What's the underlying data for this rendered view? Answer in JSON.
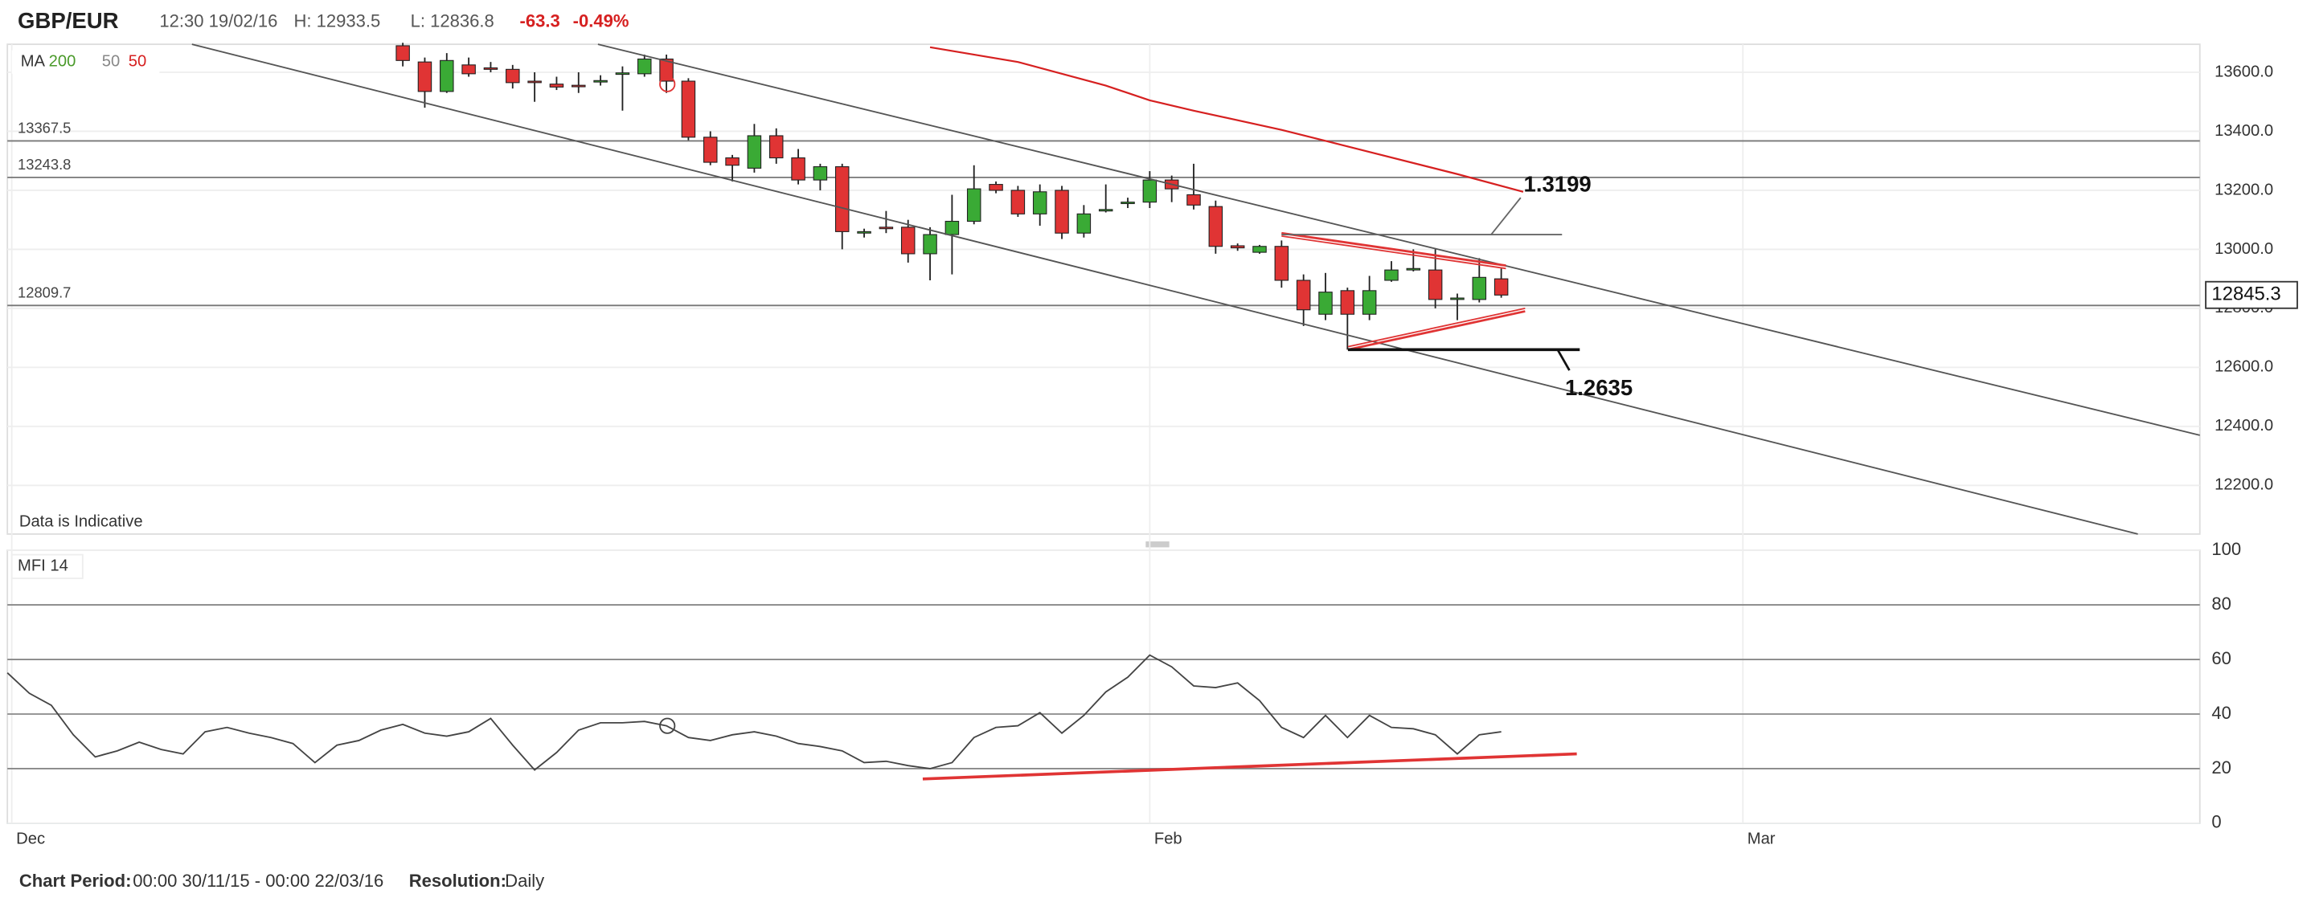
{
  "header": {
    "pair": "GBP/EUR",
    "time": "12:30 19/02/16",
    "high": "H: 12933.5",
    "low": "L: 12836.8",
    "change": "-63.3",
    "change_pct": "-0.49%"
  },
  "chart_data": [
    {
      "type": "candlestick",
      "x": [
        0,
        1,
        2,
        3,
        4,
        5,
        6,
        7,
        8,
        9,
        10,
        11,
        12,
        13,
        14,
        15,
        16,
        17,
        18,
        19,
        20,
        21,
        22,
        23,
        24,
        25,
        26,
        27,
        28,
        29,
        30,
        31,
        32,
        33,
        34,
        35,
        36,
        37,
        38,
        39,
        40,
        41,
        42,
        43,
        44,
        45,
        46,
        47,
        48,
        49,
        50
      ],
      "open": [
        13690,
        13635,
        13535,
        13625,
        13615,
        13610,
        13570,
        13560,
        13556,
        13570,
        13595,
        13595,
        13645,
        13570,
        13380,
        13310,
        13275,
        13385,
        13310,
        13235,
        13280,
        13058,
        13075,
        13075,
        12985,
        13050,
        13095,
        13220,
        13200,
        13120,
        13200,
        13055,
        13130,
        13155,
        13160,
        13235,
        13185,
        13145,
        13012,
        12990,
        13010,
        12895,
        12780,
        12860,
        12780,
        12895,
        12930,
        12930,
        12830,
        12830,
        12900
      ],
      "high": [
        13700,
        13650,
        13665,
        13650,
        13635,
        13625,
        13600,
        13585,
        13600,
        13590,
        13620,
        13660,
        13660,
        13580,
        13400,
        13320,
        13425,
        13410,
        13340,
        13290,
        13290,
        13070,
        13130,
        13100,
        13075,
        13185,
        13285,
        13230,
        13215,
        13220,
        13215,
        13150,
        13220,
        13175,
        13265,
        13250,
        13290,
        13165,
        13020,
        13015,
        13030,
        12915,
        12920,
        12870,
        12910,
        12960,
        13000,
        13000,
        12850,
        12970,
        12935
      ],
      "low": [
        13620,
        13480,
        13530,
        13585,
        13600,
        13545,
        13500,
        13540,
        13530,
        13555,
        13470,
        13585,
        13530,
        13370,
        13285,
        13230,
        13260,
        13290,
        13220,
        13200,
        13000,
        13040,
        13055,
        12955,
        12895,
        12915,
        13085,
        13190,
        13110,
        13080,
        13035,
        13040,
        13125,
        13140,
        13140,
        13160,
        13135,
        12985,
        12995,
        12985,
        12870,
        12740,
        12760,
        12660,
        12760,
        12890,
        12925,
        12800,
        12760,
        12820,
        12836
      ],
      "close": [
        13640,
        13535,
        13640,
        13595,
        13612,
        13565,
        13568,
        13550,
        13555,
        13572,
        13598,
        13645,
        13570,
        13380,
        13295,
        13285,
        13385,
        13310,
        13235,
        13280,
        13060,
        13060,
        13072,
        12985,
        13050,
        13095,
        13205,
        13200,
        13120,
        13195,
        13055,
        13120,
        13135,
        13160,
        13235,
        13205,
        13150,
        13010,
        13005,
        13010,
        12895,
        12795,
        12855,
        12780,
        12860,
        12930,
        12935,
        12830,
        12835,
        12905,
        12845
      ],
      "up_color": "#3aaa35",
      "down_color": "#e03434",
      "xlim": [
        -18,
        81.8
      ],
      "xticks": [
        {
          "value": -17.8,
          "label": "Dec"
        },
        {
          "value": 34,
          "label": "Feb"
        },
        {
          "value": 61,
          "label": "Mar"
        }
      ],
      "ylim": [
        12035,
        13695
      ],
      "yticks": [
        {
          "value": 12200,
          "label": "12200.0"
        },
        {
          "value": 12400,
          "label": "12400.0"
        },
        {
          "value": 12600,
          "label": "12600.0"
        },
        {
          "value": 12800,
          "label": "12800.0"
        },
        {
          "value": 13000,
          "label": "13000.0"
        },
        {
          "value": 13200,
          "label": "13200.0"
        },
        {
          "value": 13400,
          "label": "13400.0"
        },
        {
          "value": 13600,
          "label": "13600.0"
        }
      ],
      "grid": true,
      "levels": [
        13367.5,
        13243.8,
        12809.7
      ],
      "last_price": 12845.3,
      "ma_label": "MA",
      "ma_legend": [
        {
          "name": "200",
          "color": "#4a9a2a"
        },
        {
          "name": "50",
          "color": "#888888"
        },
        {
          "name": "50",
          "color": "#d62020"
        }
      ],
      "ma_line": {
        "color": "#d62020",
        "x": [
          24,
          28,
          32,
          34,
          36,
          40,
          44,
          48,
          51
        ],
        "values": [
          13685,
          13635,
          13555,
          13505,
          13470,
          13405,
          13330,
          13255,
          13195
        ]
      },
      "note": "Data is Indicative",
      "annotations": [
        "1.3199",
        "1.2635"
      ]
    },
    {
      "type": "line",
      "title": "MFI 14",
      "color": "#444444",
      "x": [
        -18,
        -17,
        -16,
        -15,
        -14,
        -13,
        -12,
        -11,
        -10,
        -9,
        -8,
        -7,
        -6,
        -5,
        -4,
        -3,
        -2,
        -1,
        0,
        1,
        2,
        3,
        4,
        5,
        6,
        7,
        8,
        9,
        10,
        11,
        12,
        13,
        14,
        15,
        16,
        17,
        18,
        19,
        20,
        21,
        22,
        23,
        24,
        25,
        26,
        27,
        28,
        29,
        30,
        31,
        32,
        33,
        34,
        35,
        36,
        37,
        38,
        39,
        40,
        41,
        42,
        43,
        44,
        45,
        46,
        47,
        48,
        49,
        50
      ],
      "values": [
        55.1,
        47.6,
        43.2,
        32.4,
        24.3,
        26.5,
        29.7,
        27.0,
        25.4,
        33.5,
        35.1,
        33.0,
        31.4,
        29.2,
        22.2,
        28.6,
        30.3,
        34.1,
        36.2,
        33.0,
        31.9,
        33.5,
        38.4,
        28.6,
        19.5,
        25.9,
        34.1,
        36.8,
        36.8,
        37.3,
        35.7,
        31.4,
        30.3,
        32.4,
        33.5,
        31.9,
        29.2,
        28.1,
        26.5,
        22.2,
        22.7,
        21.1,
        20.0,
        22.2,
        31.4,
        35.1,
        35.7,
        40.5,
        33.0,
        39.5,
        48.1,
        53.5,
        61.6,
        57.3,
        50.3,
        49.7,
        51.4,
        44.9,
        35.1,
        31.4,
        39.5,
        31.4,
        39.5,
        35.1,
        34.6,
        32.4,
        25.4,
        32.4,
        33.5
      ],
      "xlim": [
        -18,
        81.8
      ],
      "ylim": [
        0,
        100
      ],
      "yticks": [
        0,
        20,
        40,
        60,
        80,
        100
      ],
      "grid": true
    }
  ],
  "footer": {
    "period_label": "Chart Period:",
    "period": "00:00 30/11/15 - 00:00 22/03/16",
    "resolution_label": "Resolution:",
    "resolution": "Daily"
  }
}
